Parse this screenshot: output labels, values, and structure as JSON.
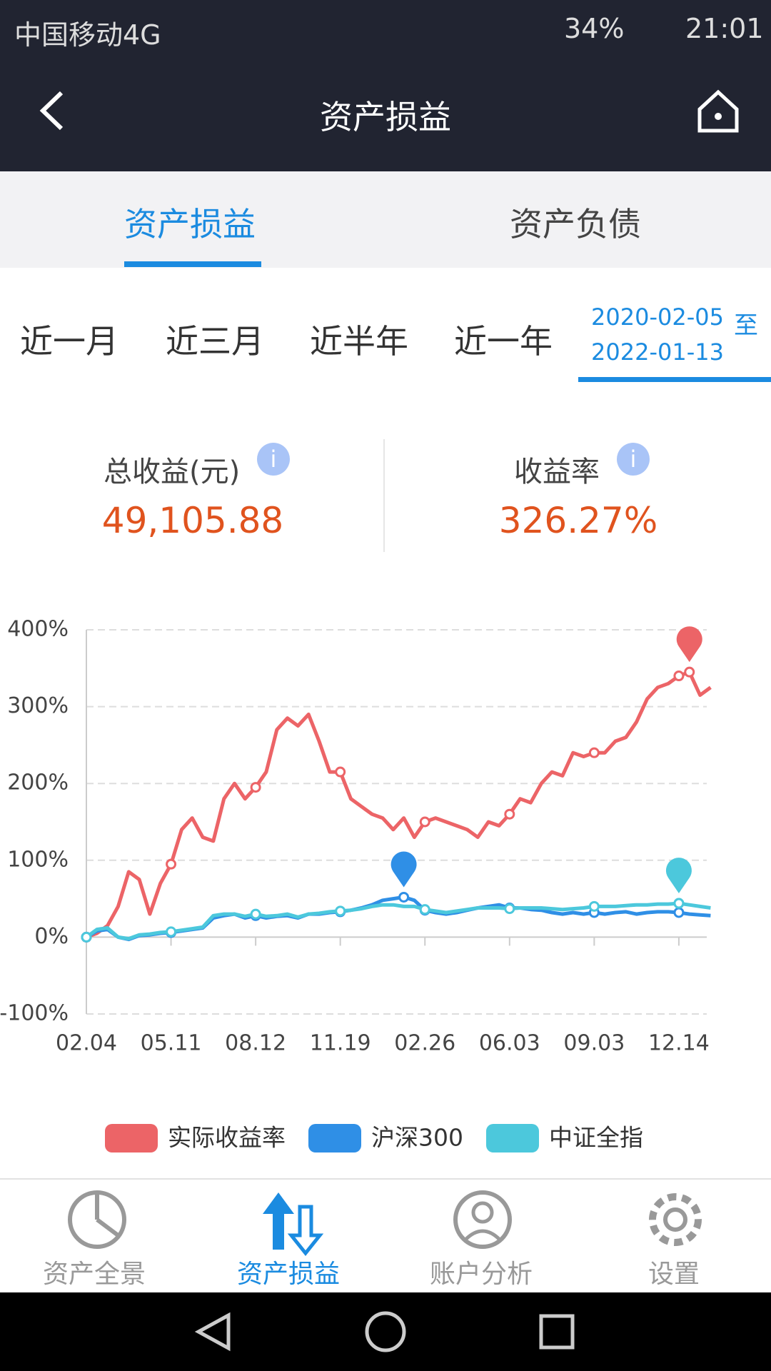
{
  "status_bar": {
    "carrier": "中国移动4G",
    "battery": "34%",
    "time": "21:01"
  },
  "header": {
    "title": "资产损益"
  },
  "tabs": [
    "资产损益",
    "资产负债"
  ],
  "periods": [
    "近一月",
    "近三月",
    "近半年",
    "近一年"
  ],
  "date_range": {
    "start": "2020-02-05",
    "sep": "至",
    "end": "2022-01-13"
  },
  "summary": {
    "total_label": "总收益(元)",
    "total_value": "49,105.88",
    "rate_label": "收益率",
    "rate_value": "326.27%"
  },
  "chart_data": {
    "type": "line",
    "categories": [
      "02.04",
      null,
      null,
      null,
      null,
      null,
      null,
      null,
      "05.11",
      null,
      null,
      null,
      null,
      null,
      null,
      null,
      "08.12",
      null,
      null,
      null,
      null,
      null,
      null,
      null,
      "11.19",
      null,
      null,
      null,
      null,
      null,
      null,
      null,
      "02.26",
      null,
      null,
      null,
      null,
      null,
      null,
      null,
      "06.03",
      null,
      null,
      null,
      null,
      null,
      null,
      null,
      "09.03",
      null,
      null,
      null,
      null,
      null,
      null,
      null,
      "12.14",
      null,
      null,
      null
    ],
    "series": [
      {
        "name": "实际收益率",
        "color": "#ec6467",
        "values": [
          0,
          5,
          15,
          40,
          85,
          75,
          30,
          70,
          95,
          140,
          155,
          130,
          125,
          180,
          200,
          180,
          195,
          215,
          270,
          285,
          275,
          290,
          255,
          215,
          215,
          180,
          170,
          160,
          155,
          140,
          155,
          130,
          150,
          155,
          150,
          145,
          140,
          130,
          150,
          145,
          160,
          180,
          175,
          200,
          215,
          210,
          240,
          235,
          240,
          240,
          255,
          260,
          280,
          310,
          325,
          330,
          340,
          345,
          315,
          325
        ]
      },
      {
        "name": "沪深300",
        "color": "#2f8fe6",
        "values": [
          0,
          8,
          10,
          0,
          -3,
          2,
          3,
          5,
          6,
          8,
          10,
          12,
          25,
          28,
          30,
          25,
          28,
          25,
          27,
          28,
          25,
          30,
          30,
          32,
          33,
          35,
          38,
          42,
          48,
          50,
          52,
          48,
          35,
          32,
          30,
          32,
          35,
          38,
          40,
          42,
          38,
          38,
          36,
          35,
          32,
          30,
          32,
          30,
          32,
          30,
          32,
          33,
          30,
          32,
          33,
          33,
          32,
          30,
          29,
          28
        ]
      },
      {
        "name": "中证全指",
        "color": "#4cc8dc",
        "values": [
          0,
          10,
          12,
          0,
          -2,
          3,
          4,
          6,
          7,
          9,
          11,
          13,
          28,
          30,
          30,
          27,
          30,
          27,
          28,
          30,
          26,
          30,
          31,
          33,
          34,
          35,
          37,
          40,
          42,
          42,
          40,
          40,
          36,
          34,
          32,
          34,
          36,
          38,
          38,
          38,
          37,
          38,
          38,
          38,
          37,
          36,
          37,
          38,
          40,
          40,
          40,
          41,
          42,
          42,
          43,
          43,
          44,
          42,
          40,
          38
        ]
      }
    ],
    "ylim": [
      -100,
      400
    ],
    "yticks": [
      {
        "value": -100,
        "label": "-100%"
      },
      {
        "value": 0,
        "label": "0%"
      },
      {
        "value": 100,
        "label": "100%"
      },
      {
        "value": 200,
        "label": "200%"
      },
      {
        "value": 300,
        "label": "300%"
      },
      {
        "value": 400,
        "label": "400%"
      }
    ],
    "grid": true
  },
  "bottom_nav": [
    "资产全景",
    "资产损益",
    "账户分析",
    "设置"
  ]
}
